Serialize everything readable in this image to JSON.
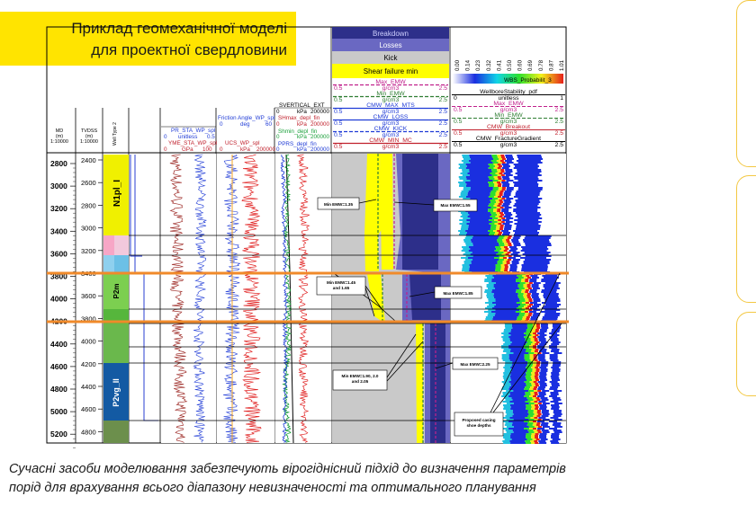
{
  "slide": {
    "title_line1": "Приклад геомеханічної моделі",
    "title_line2": "для проектної свердловини",
    "caption_line1": "Сучасні засоби моделювання забезпечують вірогіднісний підхід до визначення параметрів",
    "caption_line2": "порід для врахування всього діапазону невизначеності та оптимального планування"
  },
  "log": {
    "md_header": [
      "MD",
      "(m)",
      "1:10000"
    ],
    "tvdss_header": [
      "TVDSS",
      "(m)",
      "1:10000"
    ],
    "md_ticks": [
      "2800",
      "3000",
      "3200",
      "3400",
      "3600",
      "3800",
      "4000",
      "4200",
      "4400",
      "4600",
      "4800",
      "5000",
      "5200"
    ],
    "tvd_ticks": [
      "2400",
      "2600",
      "2800",
      "3000",
      "3200",
      "3400",
      "3600",
      "3800",
      "4000",
      "4200",
      "4400",
      "4600",
      "4800"
    ],
    "well_type_label": "Well Type 2",
    "formations": [
      "N1pl_I",
      "P2m",
      "P2vg_II"
    ],
    "track3_headers": [
      "PR_STA_WP_spl",
      "0",
      "unitless",
      "0.5",
      "YME_STA_WP_spl",
      "0",
      "GPa",
      "100"
    ],
    "track4_headers": [
      "Friction Angle_WP_spl",
      "0",
      "deg",
      "60",
      "UCS_WP_spl",
      "0",
      "kPa",
      "200000"
    ],
    "track5_headers": [
      "SVERTICAL_EXT",
      "0",
      "kPa",
      "200000",
      "SHmax_depl_fin",
      "0",
      "kPa",
      "200000",
      "Shmin_depl_fin",
      "0",
      "kPa",
      "200000",
      "PPRS_depl_fin",
      "0",
      "kPa",
      "200000"
    ],
    "mud_legend": [
      "Breakdown",
      "Losses",
      "Kick",
      "Shear failure min"
    ],
    "mud_curves": [
      {
        "name": "Max_EMW",
        "min": "0.5",
        "unit": "g/cm3",
        "max": "2.5"
      },
      {
        "name": "Min_EMW",
        "min": "0.5",
        "unit": "g/cm3",
        "max": "2.5"
      },
      {
        "name": "CMW_MAX_MTS",
        "min": "0.5",
        "unit": "g/cm3",
        "max": "2.5"
      },
      {
        "name": "CMW_LOSS",
        "min": "0.5",
        "unit": "g/cm3",
        "max": "2.5"
      },
      {
        "name": "CMW_KICK",
        "min": "0.5",
        "unit": "g/cm3",
        "max": "2.5"
      },
      {
        "name": "CMW_MIN_MC",
        "min": "0.5",
        "unit": "g/cm3",
        "max": "2.5"
      }
    ],
    "prob_scale": [
      "0.00",
      "0.14",
      "0.23",
      "0.32",
      "0.41",
      "0.50",
      "0.60",
      "0.69",
      "0.78",
      "0.87",
      "1.01"
    ],
    "prob_curves": [
      {
        "name": "WellboreStability_pdf",
        "min": "0",
        "unit": "unitless",
        "max": "1"
      },
      {
        "name": "Max_EMW",
        "min": "0.5",
        "unit": "g/cm3",
        "max": "2.5"
      },
      {
        "name": "Min_EMW",
        "min": "0.5",
        "unit": "g/cm3",
        "max": "2.5"
      },
      {
        "name": "CMW_Breakout",
        "min": "0.5",
        "unit": "g/cm3",
        "max": "2.5"
      },
      {
        "name": "CMW_FractureGradient",
        "min": "0.5",
        "unit": "g/cm3",
        "max": "2.5"
      }
    ],
    "prob_legend_label": "WBS_Probabilit_3",
    "annotations": [
      "Min EMW=1.35",
      "Max EMW=1.55",
      "Min EMW=1.45 and 1.65",
      "Max EMW=1.85",
      "Min EMW=1.90, 2.0 and 2.05",
      "Max EMW=2.25",
      "Proposed casing shoe depths"
    ]
  }
}
